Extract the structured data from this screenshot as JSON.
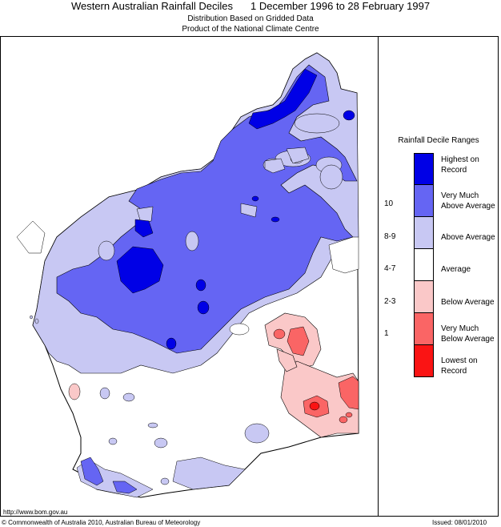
{
  "header": {
    "title_left": "Western Australian Rainfall Deciles",
    "title_right": "1 December 1996 to 28 February 1997",
    "subtitle_1": "Distribution Based on Gridded Data",
    "subtitle_2": "Product of the National Climate Centre"
  },
  "legend": {
    "title": "Rainfall Decile Ranges",
    "items": [
      {
        "range": "",
        "line1": "Highest on",
        "line2": "Record",
        "color": "#0000e6"
      },
      {
        "range": "10",
        "line1": "Very Much",
        "line2": "Above Average",
        "color": "#6565f3"
      },
      {
        "range": "8-9",
        "line1": "Above Average",
        "line2": "",
        "color": "#c8c8f3"
      },
      {
        "range": "4-7",
        "line1": "Average",
        "line2": "",
        "color": "#ffffff"
      },
      {
        "range": "2-3",
        "line1": "Below Average",
        "line2": "",
        "color": "#fac8c8"
      },
      {
        "range": "1",
        "line1": "Very Much",
        "line2": "Below Average",
        "color": "#fa6565"
      },
      {
        "range": "",
        "line1": "Lowest on",
        "line2": "Record",
        "color": "#fa1414"
      }
    ]
  },
  "footer": {
    "url": "http://www.bom.gov.au",
    "copyright": "© Commonwealth of Australia 2010, Australian Bureau of Meteorology",
    "issued": "Issued: 08/01/2010"
  }
}
